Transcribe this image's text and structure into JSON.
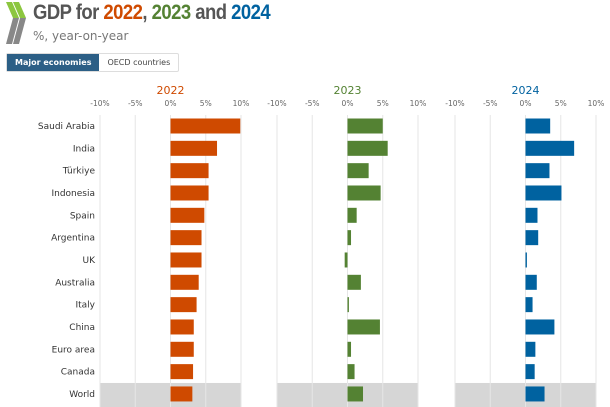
{
  "header": {
    "title_prefix": "GDP for ",
    "title_years": [
      "2022",
      "2023",
      "2024"
    ],
    "title_sep": ", ",
    "title_and": " and ",
    "subtitle": "%, year-on-year",
    "logo": "oecd-chevron-logo"
  },
  "tabs": [
    {
      "label": "Major economies",
      "active": true
    },
    {
      "label": "OECD countries",
      "active": false
    }
  ],
  "chart_data": {
    "type": "bar",
    "orientation": "horizontal",
    "categories": [
      "Saudi Arabia",
      "India",
      "Türkiye",
      "Indonesia",
      "Spain",
      "Argentina",
      "UK",
      "Australia",
      "Italy",
      "China",
      "Euro area",
      "Canada",
      "World"
    ],
    "highlighted_category": "World",
    "xlim": [
      -10,
      10
    ],
    "xticks": [
      "-10%",
      "-5%",
      "0%",
      "5%",
      "10%"
    ],
    "tick_values": [
      -10,
      -5,
      0,
      5,
      10
    ],
    "grid": true,
    "series": [
      {
        "name": "2022",
        "color": "#cf4a00",
        "values": [
          9.9,
          6.6,
          5.4,
          5.4,
          4.8,
          4.4,
          4.4,
          4.0,
          3.7,
          3.3,
          3.3,
          3.2,
          3.1
        ]
      },
      {
        "name": "2023",
        "color": "#548233",
        "values": [
          5.0,
          5.7,
          3.0,
          4.7,
          1.3,
          0.5,
          -0.4,
          1.9,
          0.2,
          4.6,
          0.5,
          1.0,
          2.2
        ]
      },
      {
        "name": "2024",
        "color": "#0062a0",
        "values": [
          3.5,
          6.9,
          3.4,
          5.1,
          1.7,
          1.8,
          0.2,
          1.6,
          1.0,
          4.1,
          1.4,
          1.3,
          2.7
        ]
      }
    ]
  }
}
